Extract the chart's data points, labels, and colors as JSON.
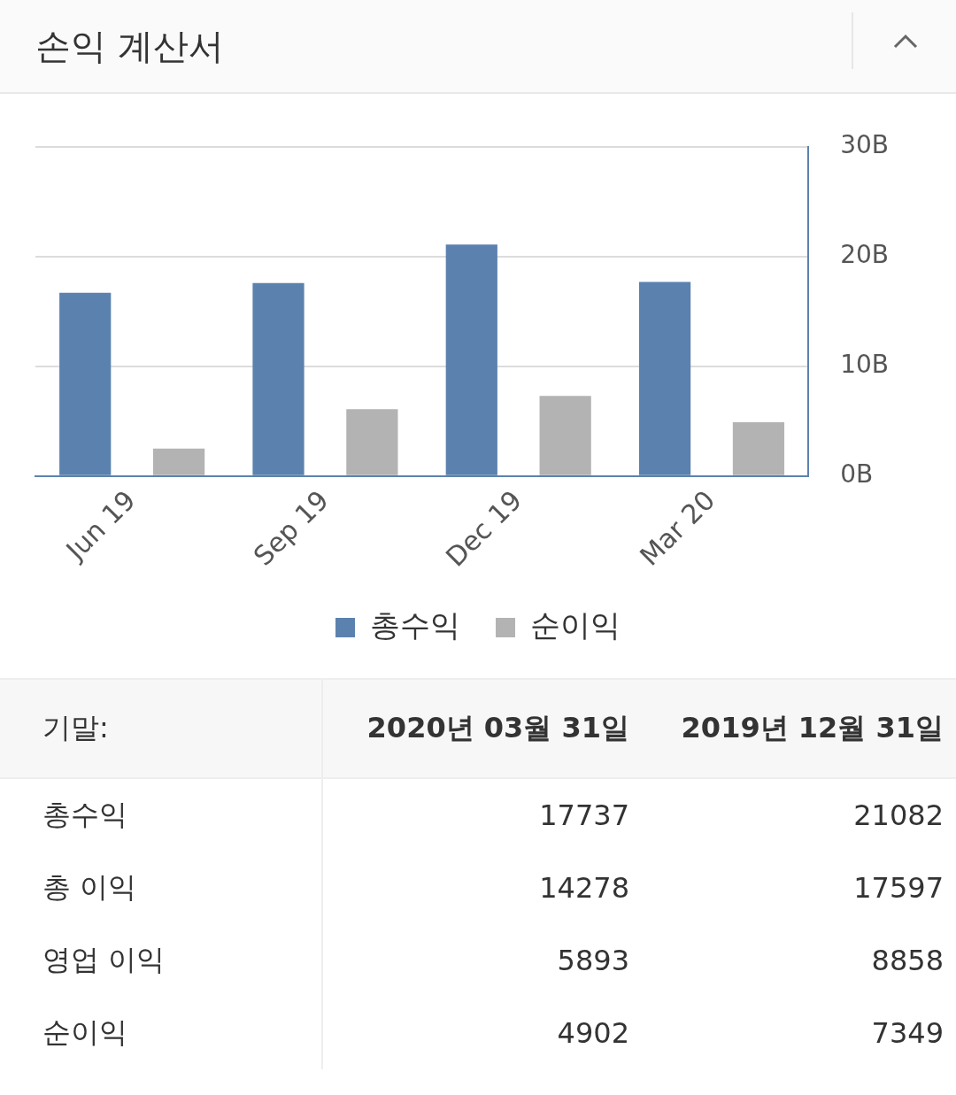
{
  "chart_data": {
    "type": "bar",
    "title": "손익 계산서",
    "categories": [
      "Jun 19",
      "Sep 19",
      "Dec 19",
      "Mar 20"
    ],
    "series": [
      {
        "name": "총수익",
        "color": "#5b82ae",
        "values": [
          16.7,
          17.6,
          21.1,
          17.7
        ]
      },
      {
        "name": "순이익",
        "color": "#b3b3b3",
        "values": [
          2.5,
          6.1,
          7.3,
          4.9
        ]
      }
    ],
    "ylim": [
      0,
      30
    ],
    "yticks": [
      {
        "value": 0,
        "label": "0B"
      },
      {
        "value": 10,
        "label": "10B"
      },
      {
        "value": 20,
        "label": "20B"
      },
      {
        "value": 30,
        "label": "30B"
      }
    ],
    "grid": "y",
    "legend": "bottom",
    "annotations": [
      "기말:",
      "2020년 03월 31일",
      "2019년 12월 31일",
      "총수익",
      "17737",
      "21082",
      "총 이익",
      "14278",
      "17597",
      "영업 이익",
      "5893",
      "8858",
      "순이익",
      "4902",
      "7349"
    ]
  }
}
